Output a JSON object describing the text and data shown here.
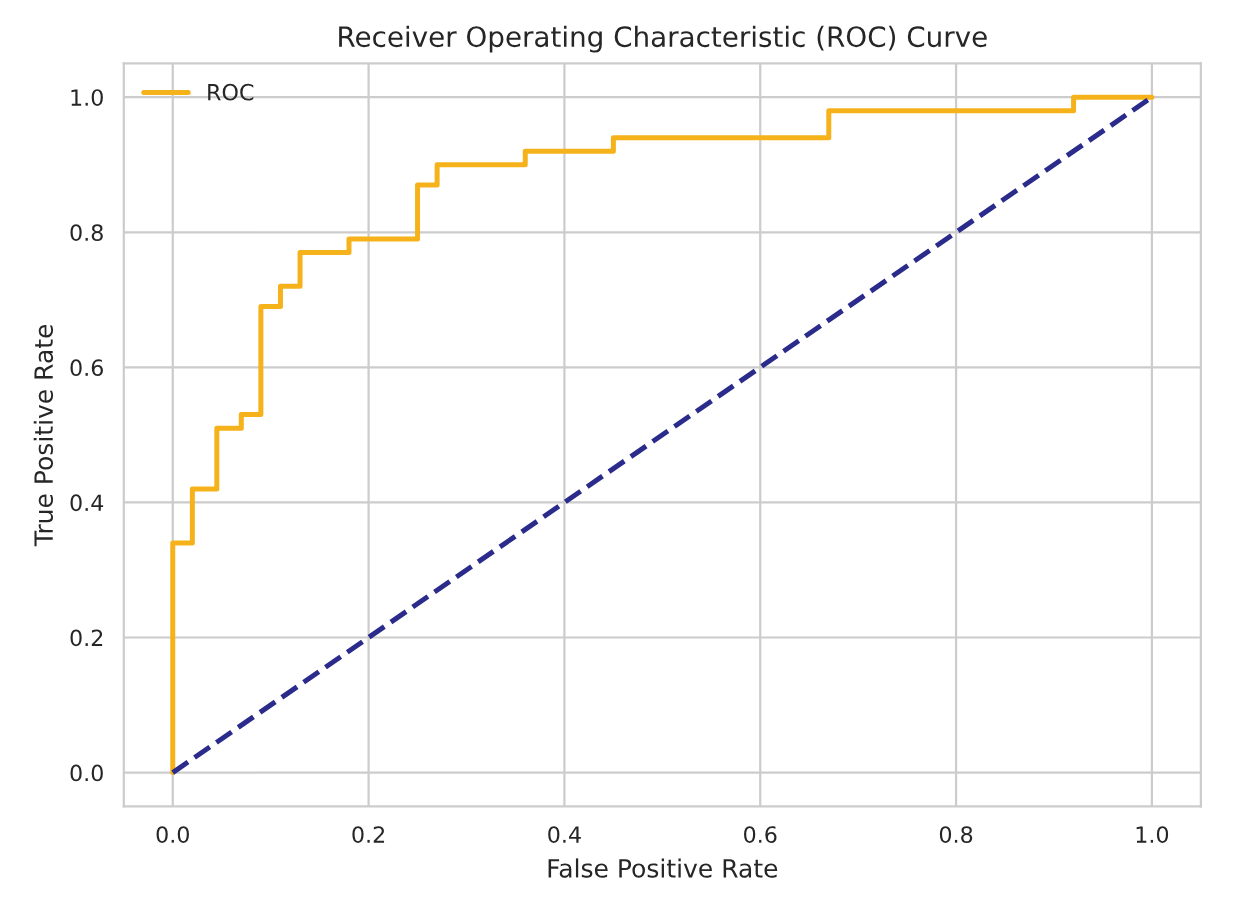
{
  "chart_data": {
    "type": "line",
    "title": "Receiver Operating Characteristic (ROC) Curve",
    "xlabel": "False Positive Rate",
    "ylabel": "True Positive Rate",
    "series": [
      {
        "name": "ROC",
        "color": "#f5b21b",
        "line_style": "solid",
        "x": [
          0,
          0,
          0.02,
          0.02,
          0.045,
          0.045,
          0.07,
          0.07,
          0.09,
          0.09,
          0.11,
          0.11,
          0.13,
          0.13,
          0.18,
          0.18,
          0.25,
          0.25,
          0.27,
          0.27,
          0.36,
          0.36,
          0.45,
          0.45,
          0.67,
          0.67,
          0.92,
          0.92,
          1.0
        ],
        "values": [
          0,
          0.34,
          0.34,
          0.42,
          0.42,
          0.51,
          0.51,
          0.53,
          0.53,
          0.69,
          0.69,
          0.72,
          0.72,
          0.77,
          0.77,
          0.79,
          0.79,
          0.87,
          0.87,
          0.9,
          0.9,
          0.92,
          0.92,
          0.94,
          0.94,
          0.98,
          0.98,
          1.0,
          1.0
        ]
      },
      {
        "color": "#2b2b8c",
        "line_style": "dashed",
        "x": [
          0,
          1
        ],
        "values": [
          0,
          1
        ]
      }
    ],
    "xlim": [
      -0.05,
      1.05
    ],
    "ylim": [
      -0.05,
      1.05
    ],
    "xticks": [
      {
        "value": 0,
        "label": "0.0"
      },
      0.2,
      0.4,
      0.6,
      0.8,
      {
        "value": 1,
        "label": "1.0"
      }
    ],
    "yticks": [
      {
        "value": 0,
        "label": "0.0"
      },
      0.2,
      0.4,
      0.6,
      0.8,
      {
        "value": 1,
        "label": "1.0"
      }
    ],
    "grid": true,
    "legend": "top left"
  }
}
